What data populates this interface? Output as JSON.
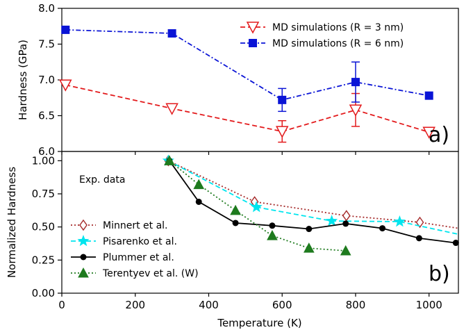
{
  "chart_data": [
    {
      "type": "line",
      "panel_label": "a)",
      "xlabel": "",
      "ylabel": "Hardness (GPa)",
      "xlim": [
        0,
        1080
      ],
      "ylim": [
        6.0,
        8.0
      ],
      "yticks": [
        "6.0",
        "6.5",
        "7.0",
        "7.5",
        "8.0"
      ],
      "grid": false,
      "legend_position": "top-right",
      "series": [
        {
          "name": "MD simulations (R = 3 nm)",
          "color": "#e31a1c",
          "line_style": "dashed",
          "marker": "triangle-down-open",
          "x": [
            10,
            300,
            600,
            800,
            1000
          ],
          "y": [
            6.93,
            6.6,
            6.28,
            6.58,
            6.27
          ],
          "yerr": [
            0,
            0,
            0.15,
            0.23,
            0
          ]
        },
        {
          "name": "MD simulations (R = 6 nm)",
          "color": "#0a14d6",
          "line_style": "dashdot",
          "marker": "square-filled",
          "x": [
            10,
            300,
            600,
            800,
            1000
          ],
          "y": [
            7.7,
            7.65,
            6.72,
            6.97,
            6.78
          ],
          "yerr": [
            0,
            0,
            0.16,
            0.28,
            0
          ]
        }
      ]
    },
    {
      "type": "line",
      "panel_label": "b)",
      "annotation": "Exp. data",
      "xlabel": "Temperature (K)",
      "ylabel": "Normalized Hardness",
      "xlim": [
        0,
        1080
      ],
      "ylim": [
        0.0,
        1.07
      ],
      "xticks": [
        "0",
        "200",
        "400",
        "600",
        "800",
        "1000"
      ],
      "yticks": [
        "0.00",
        "0.25",
        "0.50",
        "0.75",
        "1.00"
      ],
      "grid": false,
      "legend_position": "bottom-left",
      "series": [
        {
          "name": "Minnert et al.",
          "color": "#a52a2a",
          "line_style": "dotted",
          "marker": "diamond-open",
          "x": [
            290,
            525,
            775,
            975,
            1080
          ],
          "y": [
            1.0,
            0.69,
            0.585,
            0.535,
            0.49
          ],
          "marker_count": 4
        },
        {
          "name": "Pisarenko et al.",
          "color": "#00e5ee",
          "line_style": "dashed",
          "marker": "star",
          "x": [
            290,
            530,
            735,
            920,
            1080
          ],
          "y": [
            1.0,
            0.65,
            0.545,
            0.54,
            0.445
          ],
          "marker_count": 4
        },
        {
          "name": "Plummer et al.",
          "color": "#000000",
          "line_style": "solid",
          "marker": "circle-filled",
          "x": [
            293,
            373,
            473,
            573,
            673,
            773,
            873,
            973,
            1073
          ],
          "y": [
            1.0,
            0.69,
            0.53,
            0.51,
            0.485,
            0.525,
            0.49,
            0.415,
            0.38
          ],
          "marker_count": 9
        },
        {
          "name": "Terentyev et al. (W)",
          "color": "#1e7b1e",
          "line_style": "dotted",
          "marker": "triangle-up-filled",
          "x": [
            293,
            373,
            473,
            573,
            673,
            773
          ],
          "y": [
            1.0,
            0.82,
            0.625,
            0.435,
            0.34,
            0.32
          ],
          "marker_count": 6
        }
      ]
    }
  ]
}
